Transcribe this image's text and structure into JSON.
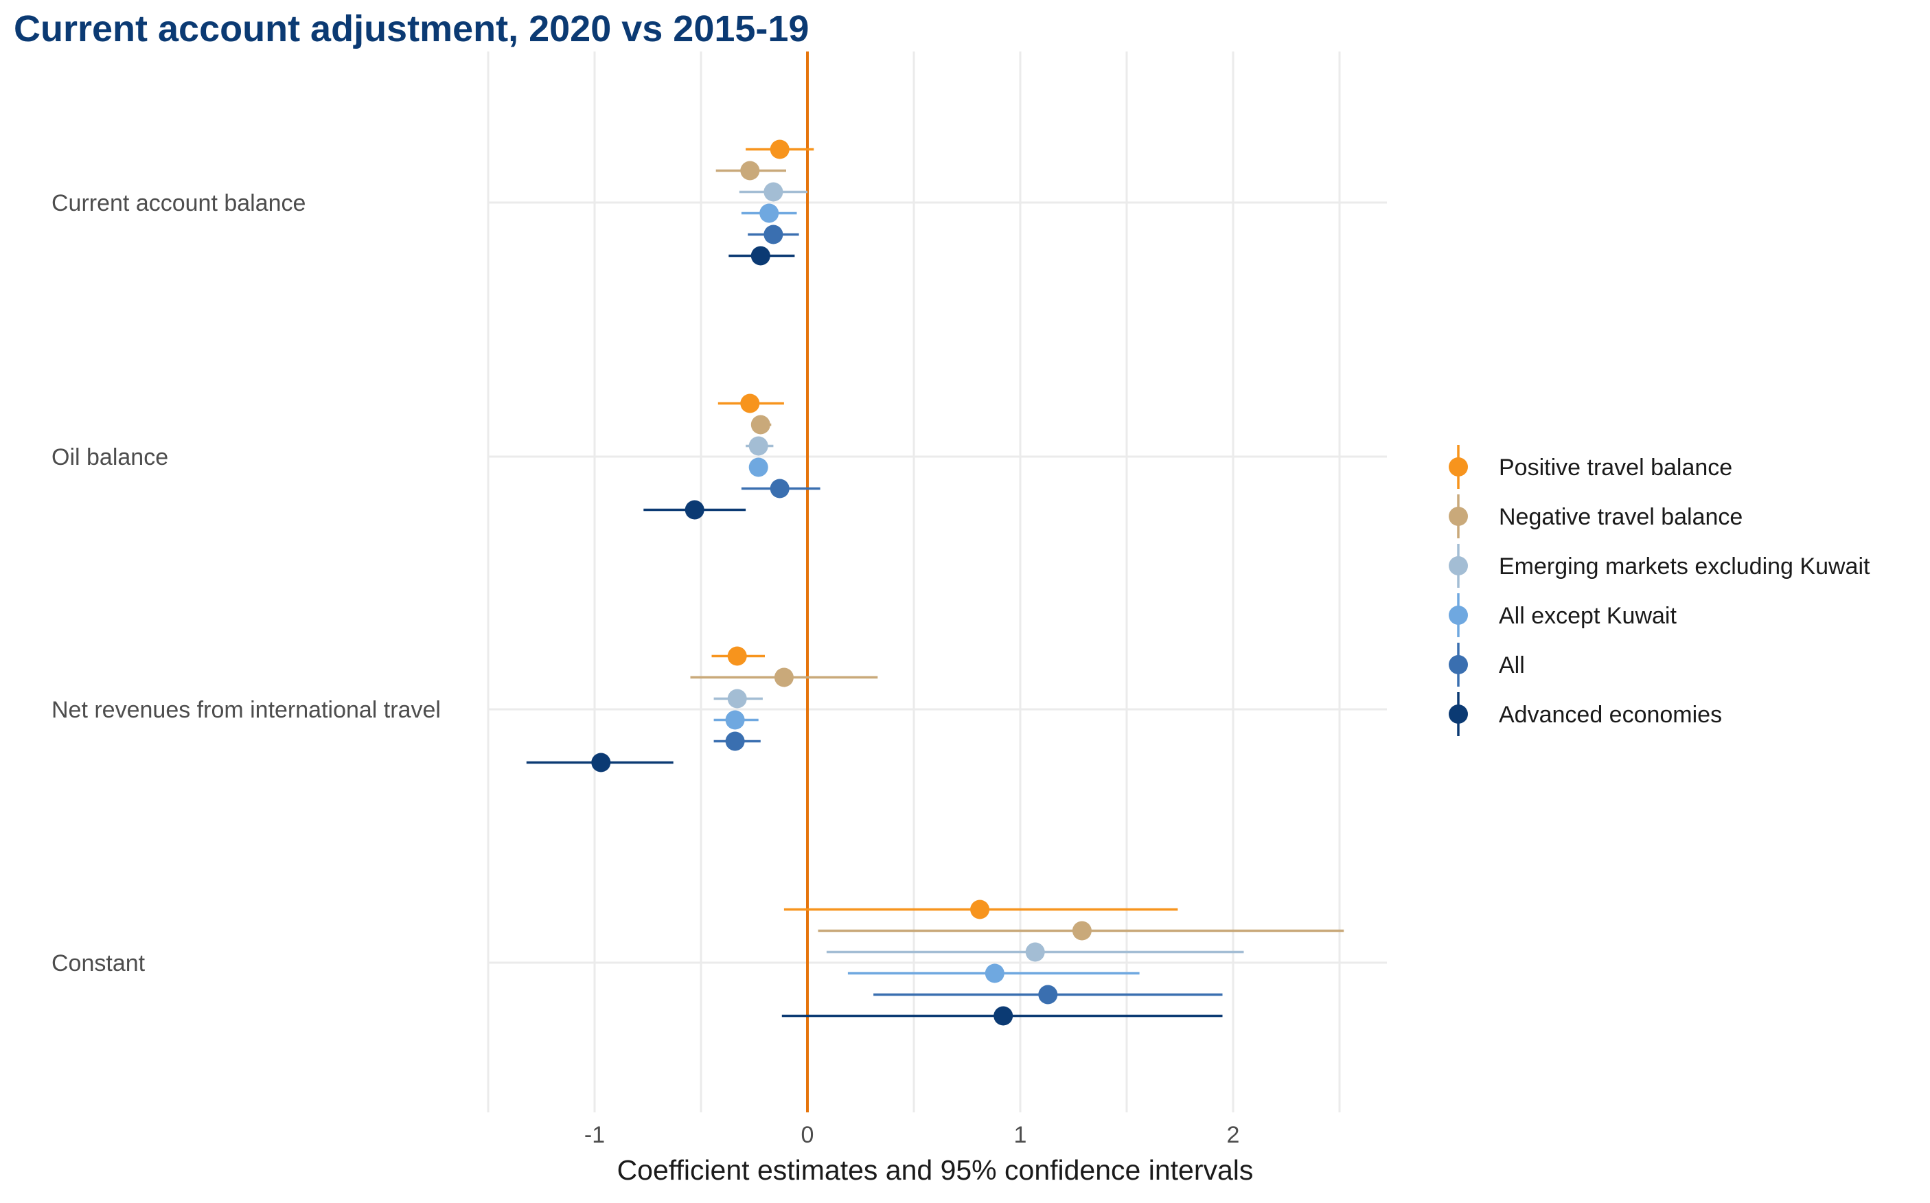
{
  "chart_data": {
    "type": "scatter",
    "title": "Current account adjustment, 2020 vs 2015-19",
    "xlabel": "Coefficient estimates and 95% confidence intervals",
    "ylabel": "",
    "xlim": [
      -1.5,
      2.7
    ],
    "xticks": [
      -1,
      0,
      1,
      2
    ],
    "xtick_labels": [
      "-1",
      "0",
      "1",
      "2"
    ],
    "grid": true,
    "legend_position": "right",
    "reference_line": {
      "x": 0,
      "color": "#e5740b"
    },
    "categories": [
      "Current account balance",
      "Oil balance",
      "Net revenues from international travel",
      "Constant"
    ],
    "series": [
      {
        "name": "Positive travel balance",
        "color": "#f7941d",
        "estimates": [
          -0.13,
          -0.27,
          -0.33,
          0.81
        ],
        "ci_low": [
          -0.29,
          -0.42,
          -0.45,
          -0.11
        ],
        "ci_high": [
          0.03,
          -0.11,
          -0.2,
          1.74
        ]
      },
      {
        "name": "Negative travel balance",
        "color": "#c9a97a",
        "estimates": [
          -0.27,
          -0.22,
          -0.11,
          1.29
        ],
        "ci_low": [
          -0.43,
          -0.26,
          -0.55,
          0.05
        ],
        "ci_high": [
          -0.1,
          -0.17,
          0.33,
          2.52
        ]
      },
      {
        "name": "Emerging markets excluding Kuwait",
        "color": "#a3bdd4",
        "estimates": [
          -0.16,
          -0.23,
          -0.33,
          1.07
        ],
        "ci_low": [
          -0.32,
          -0.29,
          -0.44,
          0.09
        ],
        "ci_high": [
          0.0,
          -0.16,
          -0.21,
          2.05
        ]
      },
      {
        "name": "All except Kuwait",
        "color": "#6fa8e0",
        "estimates": [
          -0.18,
          -0.23,
          -0.34,
          0.88
        ],
        "ci_low": [
          -0.31,
          -0.27,
          -0.44,
          0.19
        ],
        "ci_high": [
          -0.05,
          -0.19,
          -0.23,
          1.56
        ]
      },
      {
        "name": "All",
        "color": "#3a6fb0",
        "estimates": [
          -0.16,
          -0.13,
          -0.34,
          1.13
        ],
        "ci_low": [
          -0.28,
          -0.31,
          -0.44,
          0.31
        ],
        "ci_high": [
          -0.04,
          0.06,
          -0.22,
          1.95
        ]
      },
      {
        "name": "Advanced economies",
        "color": "#0b3a73",
        "estimates": [
          -0.22,
          -0.53,
          -0.97,
          0.92
        ],
        "ci_low": [
          -0.37,
          -0.77,
          -1.32,
          -0.12
        ],
        "ci_high": [
          -0.06,
          -0.29,
          -0.63,
          1.95
        ]
      }
    ]
  }
}
